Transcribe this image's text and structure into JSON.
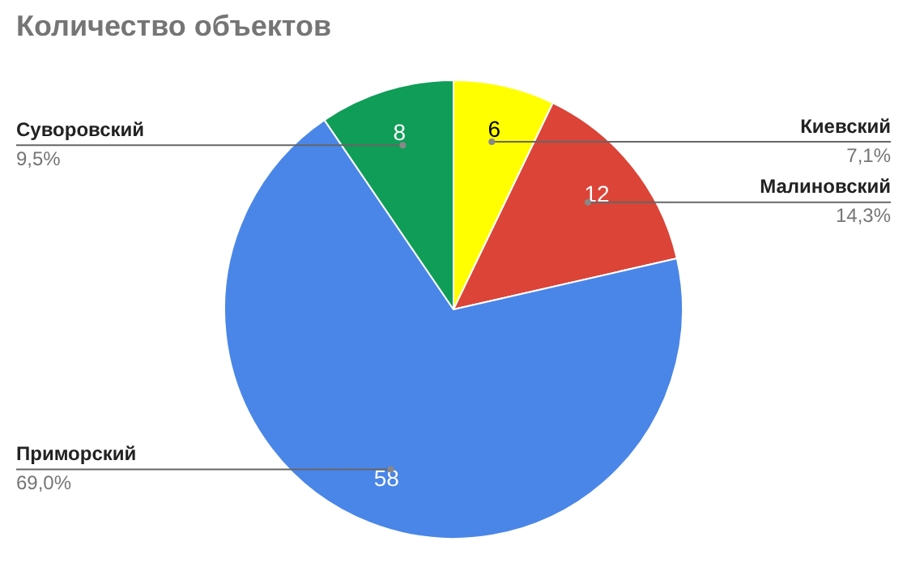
{
  "chart_data": {
    "type": "pie",
    "title": "Количество объектов",
    "categories": [
      "Киевский",
      "Малиновский",
      "Приморский",
      "Суворовский"
    ],
    "values": [
      6,
      12,
      58,
      8
    ],
    "colors": [
      "#ffff00",
      "#db4437",
      "#4a86e8",
      "#0f9d58"
    ],
    "annotations": [
      {
        "text": "7,1%",
        "x": "Киевский"
      },
      {
        "text": "14,3%",
        "x": "Малиновский"
      },
      {
        "text": "69,0%",
        "x": "Приморский"
      },
      {
        "text": "9,5%",
        "x": "Суворовский"
      }
    ],
    "data_labels": true,
    "legend": false
  }
}
